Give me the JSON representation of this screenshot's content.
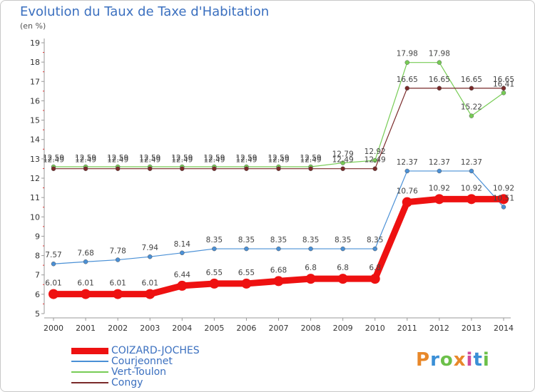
{
  "header": {
    "title": "Evolution du Taux de Taxe d'Habitation",
    "subtitle": "(en %)"
  },
  "logo": {
    "text": "Proxiti",
    "colors": [
      "#e8882a",
      "#3a8fd6",
      "#6cc04a",
      "#e8882a",
      "#d04a9a",
      "#3a8fd6",
      "#6cc04a"
    ]
  },
  "chart_data": {
    "type": "line",
    "title": "Evolution du Taux de Taxe d'Habitation",
    "ylabel": "(en %)",
    "xlabel": "",
    "x": [
      2000,
      2001,
      2002,
      2003,
      2004,
      2005,
      2006,
      2007,
      2008,
      2009,
      2010,
      2011,
      2012,
      2013,
      2014
    ],
    "ylim": [
      5,
      19
    ],
    "yticks": [
      5,
      6,
      7,
      8,
      9,
      10,
      11,
      12,
      13,
      14,
      15,
      16,
      17,
      18,
      19
    ],
    "grid": false,
    "legend_position": "bottom-left",
    "series": [
      {
        "name": "COIZARD-JOCHES",
        "color": "#ee1111",
        "values": [
          6.01,
          6.01,
          6.01,
          6.01,
          6.44,
          6.55,
          6.55,
          6.68,
          6.8,
          6.8,
          6.8,
          10.76,
          10.92,
          10.92,
          10.92
        ],
        "labels": [
          "6.01",
          "6.01",
          "6.01",
          "6.01",
          "6.44",
          "6.55",
          "6.55",
          "6.68",
          "6.8",
          "6.8",
          "6.8",
          "10.76",
          "10.92",
          "10.92",
          "10.92"
        ]
      },
      {
        "name": "Courjeonnet",
        "color": "#4a90d6",
        "values": [
          7.57,
          7.68,
          7.78,
          7.94,
          8.14,
          8.35,
          8.35,
          8.35,
          8.35,
          8.35,
          8.35,
          12.37,
          12.37,
          12.37,
          10.51
        ],
        "labels": [
          "7.57",
          "7.68",
          "7.78",
          "7.94",
          "8.14",
          "8.35",
          "8.35",
          "8.35",
          "8.35",
          "8.35",
          "8.35",
          "12.37",
          "12.37",
          "12.37",
          "10.51"
        ]
      },
      {
        "name": "Vert-Toulon",
        "color": "#77cc55",
        "values": [
          12.59,
          12.59,
          12.59,
          12.59,
          12.59,
          12.59,
          12.59,
          12.59,
          12.59,
          12.79,
          12.92,
          17.98,
          17.98,
          15.22,
          16.41
        ],
        "labels": [
          "12.59",
          "12.59",
          "12.59",
          "12.59",
          "12.59",
          "12.59",
          "12.59",
          "12.59",
          "12.59",
          "12.79",
          "12.92",
          "17.98",
          "17.98",
          "15.22",
          "16.41"
        ]
      },
      {
        "name": "Congy",
        "color": "#7a2a2a",
        "values": [
          12.49,
          12.49,
          12.49,
          12.49,
          12.49,
          12.49,
          12.49,
          12.49,
          12.49,
          12.49,
          12.49,
          16.65,
          16.65,
          16.65,
          16.65
        ],
        "labels": [
          "12.49",
          "12.49",
          "12.49",
          "12.49",
          "12.49",
          "12.49",
          "12.49",
          "12.49",
          "12.49",
          "12.49",
          "12.49",
          "16.65",
          "16.65",
          "16.65",
          "16.65"
        ]
      }
    ]
  }
}
